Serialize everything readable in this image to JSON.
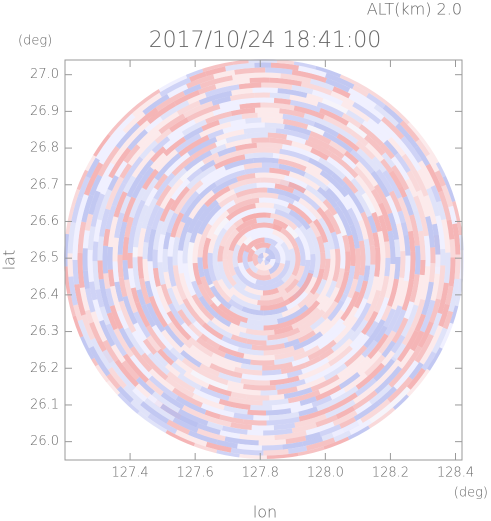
{
  "chart_data": {
    "type": "radar-ppi",
    "title": "2017/10/24 18:41:00",
    "subtitle": "ALT(km) 2.0",
    "x_label": "lon",
    "y_label": "lat",
    "x_unit": "(deg)",
    "y_unit": "(deg)",
    "xlim": [
      127.2,
      128.42
    ],
    "ylim": [
      25.95,
      27.04
    ],
    "xticks": [
      127.4,
      127.6,
      127.8,
      {
        "value": 128,
        "label": "128.0"
      },
      128.2,
      128.4
    ],
    "yticks": [
      {
        "value": 26,
        "label": "26.0"
      },
      26.1,
      26.2,
      26.3,
      26.4,
      26.5,
      26.6,
      26.7,
      26.8,
      26.9,
      {
        "value": 27,
        "label": "27.0"
      }
    ]
  }
}
